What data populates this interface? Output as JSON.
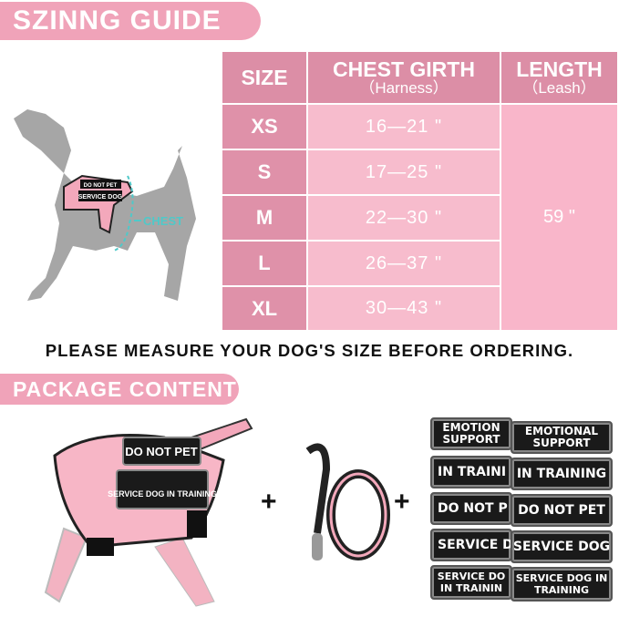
{
  "title": "SZINNG GUIDE",
  "diagram_label": "CHEST",
  "harness_patches_small": [
    "DO NOT PET",
    "SERVICE DOG"
  ],
  "table": {
    "headers": [
      {
        "label": "SIZE"
      },
      {
        "label": "CHEST GIRTH",
        "sub": "（Harness）"
      },
      {
        "label": "LENGTH",
        "sub": "（Leash）"
      }
    ],
    "rows": [
      {
        "size": "XS",
        "chest": "16—21 \""
      },
      {
        "size": "S",
        "chest": "17—25 \""
      },
      {
        "size": "M",
        "chest": "22—30 \""
      },
      {
        "size": "L",
        "chest": "26—37 \""
      },
      {
        "size": "XL",
        "chest": "30—43 \""
      }
    ],
    "length": "59 \""
  },
  "note": "PLEASE MEASURE YOUR DOG'S SIZE BEFORE ORDERING.",
  "package_title": "PACKAGE CONTENT",
  "harness_patches": [
    "DO NOT PET",
    "SERVICE DOG IN TRAINING"
  ],
  "plus": "+",
  "patches": {
    "left": [
      "EMOTION SUPPORT",
      "IN TRAINI",
      "DO NOT P",
      "SERVICE D",
      "SERVICE DO IN TRAININ"
    ],
    "right": [
      "EMOTIONAL SUPPORT",
      "IN TRAINING",
      "DO NOT PET",
      "SERVICE DOG",
      "SERVICE DOG IN TRAINING"
    ]
  },
  "colors": {
    "pink": "#f0a3b9",
    "header": "#dc8ea6",
    "cell": "#f7bccd",
    "dog": "#a6a6a6",
    "chest_line": "#4fc9c9"
  }
}
